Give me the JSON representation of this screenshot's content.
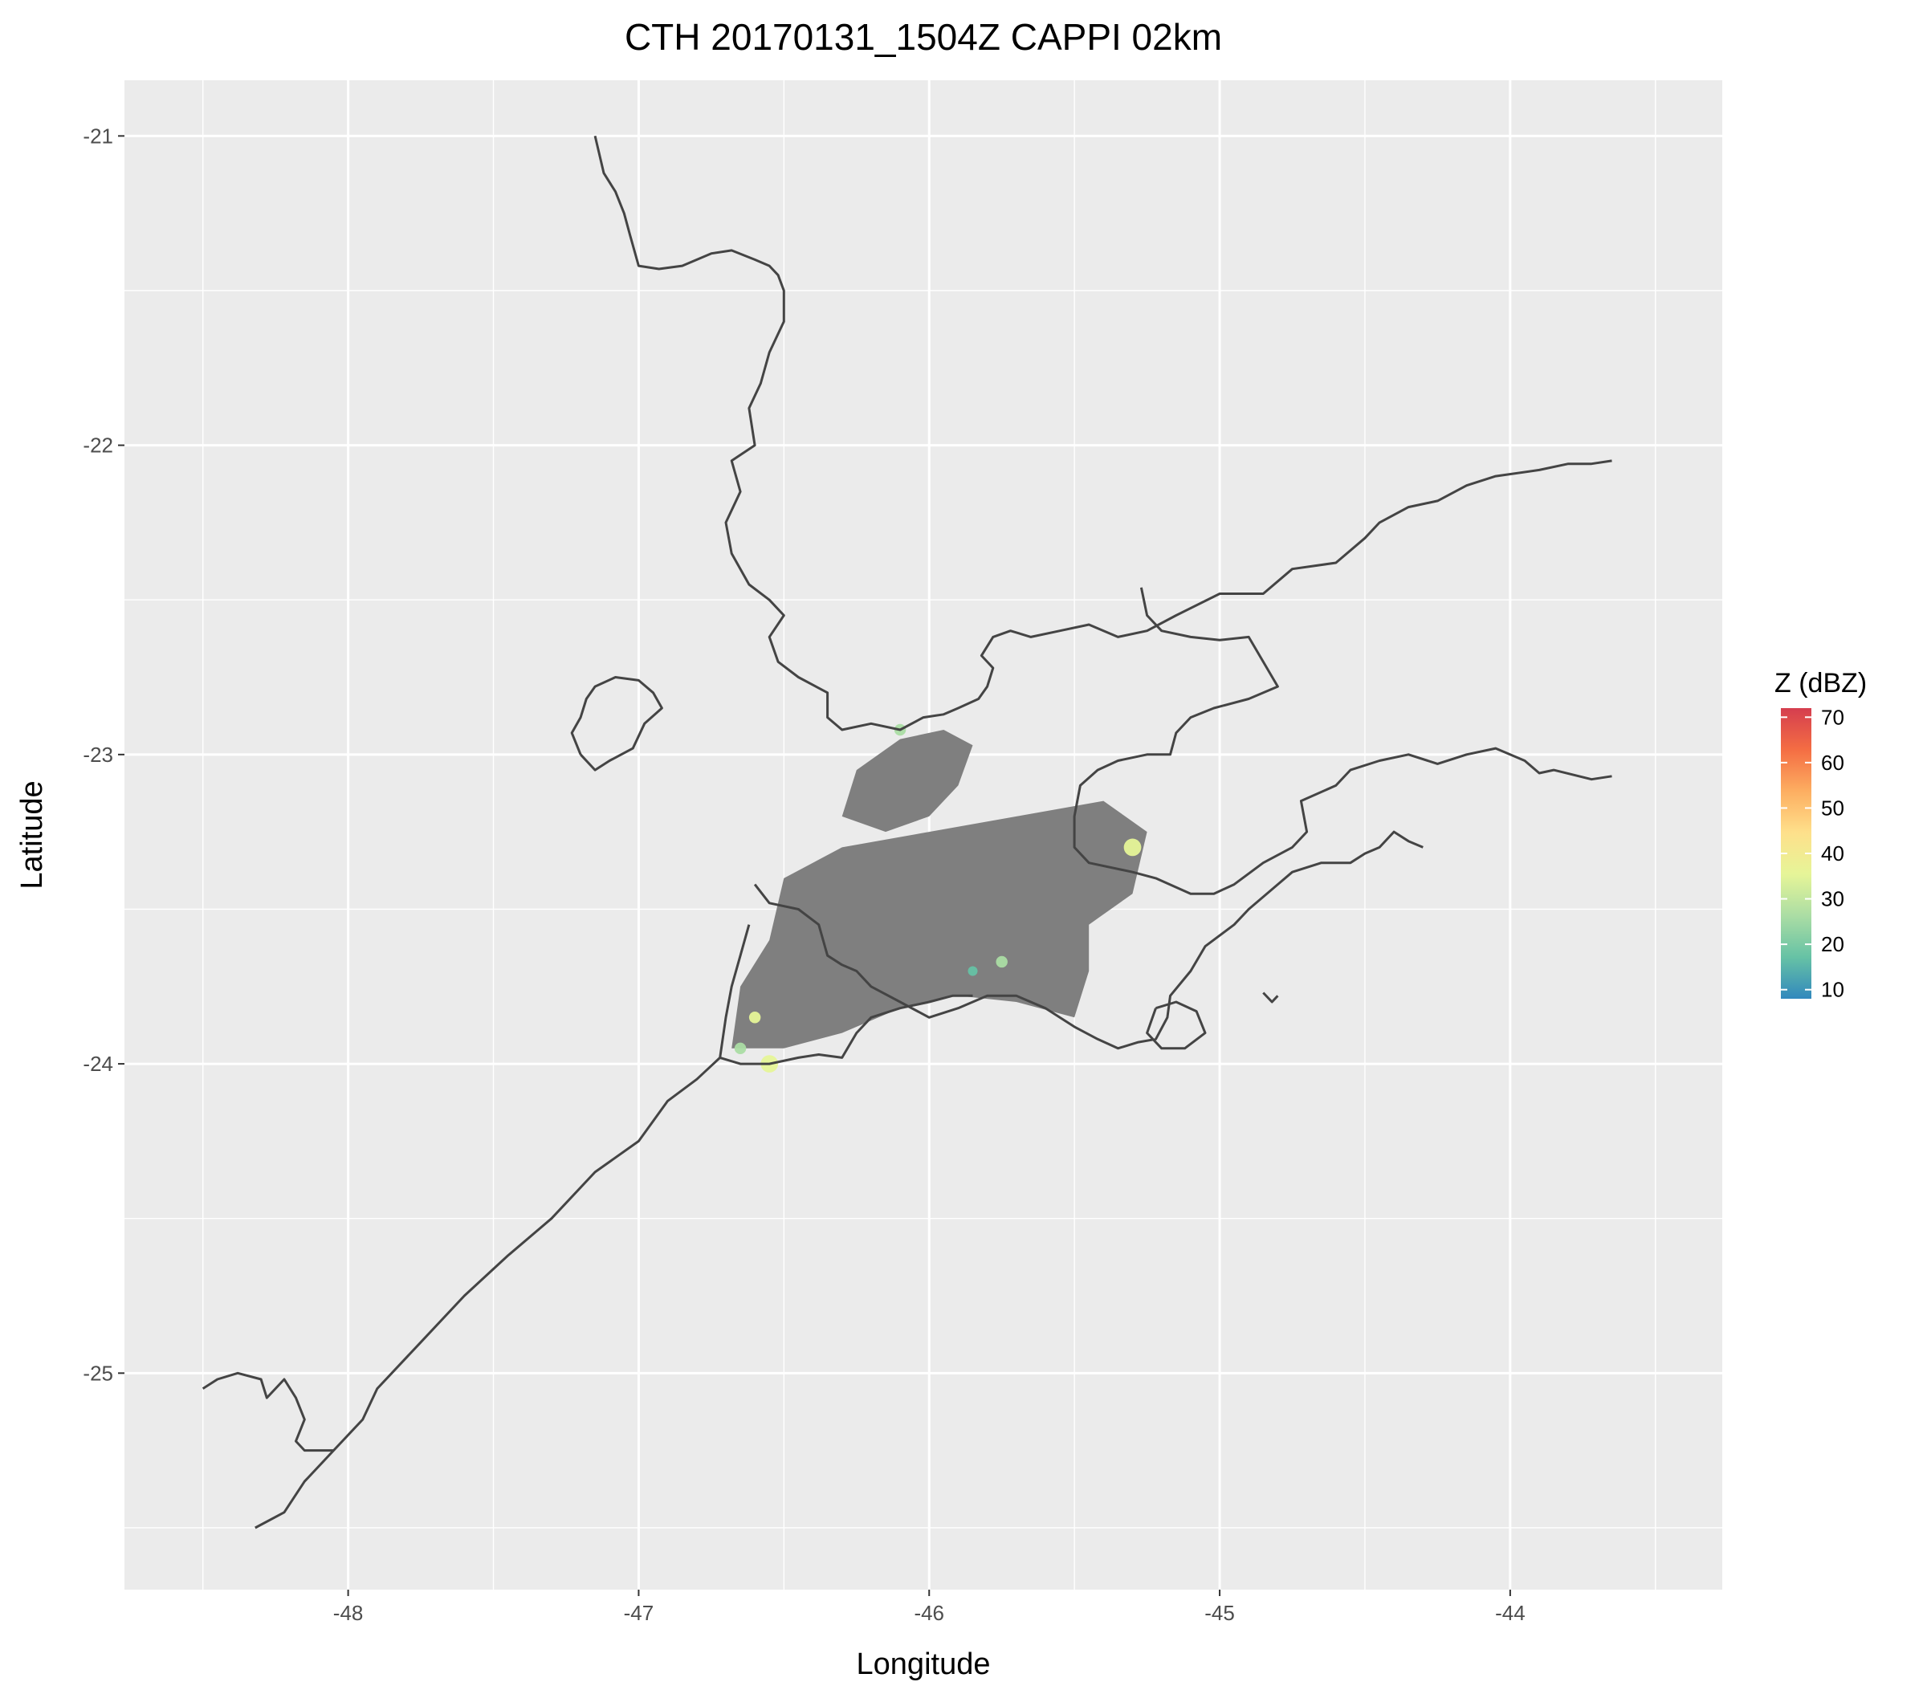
{
  "title": "CTH 20170131_1504Z  CAPPI 02km",
  "xlabel": "Longitude",
  "ylabel": "Latitude",
  "x_ticks": [
    {
      "value": -48,
      "label": "-48"
    },
    {
      "value": -47,
      "label": "-47"
    },
    {
      "value": -46,
      "label": "-46"
    },
    {
      "value": -45,
      "label": "-45"
    },
    {
      "value": -44,
      "label": "-44"
    }
  ],
  "y_ticks": [
    {
      "value": -21,
      "label": "-21"
    },
    {
      "value": -22,
      "label": "-22"
    },
    {
      "value": -23,
      "label": "-23"
    },
    {
      "value": -24,
      "label": "-24"
    },
    {
      "value": -25,
      "label": "-25"
    }
  ],
  "legend": {
    "title": "Z (dBZ)",
    "range": [
      8,
      72
    ],
    "ticks": [
      {
        "value": 70,
        "label": "70"
      },
      {
        "value": 60,
        "label": "60"
      },
      {
        "value": 50,
        "label": "50"
      },
      {
        "value": 40,
        "label": "40"
      },
      {
        "value": 30,
        "label": "30"
      },
      {
        "value": 20,
        "label": "20"
      },
      {
        "value": 10,
        "label": "10"
      }
    ],
    "colors": [
      "#3288bd",
      "#66c2a5",
      "#abdda4",
      "#e6f598",
      "#fee08b",
      "#fdae61",
      "#f46d43",
      "#d53e4f"
    ]
  },
  "colors": {
    "panel": "#ebebeb",
    "grid": "#ffffff",
    "coast": "#444444",
    "echo_gray": "#7f7f7f"
  },
  "chart_data": {
    "type": "map",
    "xlim": [
      -48.77,
      -43.27
    ],
    "ylim": [
      -25.7,
      -20.82
    ],
    "grid": true,
    "legend_position": "right",
    "coastlines": [
      [
        [
          -47.15,
          -21.0
        ],
        [
          -47.12,
          -21.12
        ],
        [
          -47.08,
          -21.18
        ],
        [
          -47.05,
          -21.25
        ],
        [
          -47.03,
          -21.32
        ],
        [
          -47.0,
          -21.42
        ],
        [
          -46.93,
          -21.43
        ],
        [
          -46.85,
          -21.42
        ],
        [
          -46.75,
          -21.38
        ],
        [
          -46.68,
          -21.37
        ],
        [
          -46.6,
          -21.4
        ],
        [
          -46.55,
          -21.42
        ],
        [
          -46.52,
          -21.45
        ],
        [
          -46.5,
          -21.5
        ],
        [
          -46.5,
          -21.6
        ],
        [
          -46.55,
          -21.7
        ],
        [
          -46.58,
          -21.8
        ],
        [
          -46.62,
          -21.88
        ],
        [
          -46.6,
          -22.0
        ],
        [
          -46.68,
          -22.05
        ],
        [
          -46.65,
          -22.15
        ],
        [
          -46.7,
          -22.25
        ],
        [
          -46.68,
          -22.35
        ],
        [
          -46.62,
          -22.45
        ],
        [
          -46.55,
          -22.5
        ],
        [
          -46.5,
          -22.55
        ],
        [
          -46.55,
          -22.62
        ],
        [
          -46.52,
          -22.7
        ],
        [
          -46.45,
          -22.75
        ],
        [
          -46.35,
          -22.8
        ],
        [
          -46.35,
          -22.88
        ],
        [
          -46.3,
          -22.92
        ],
        [
          -46.2,
          -22.9
        ],
        [
          -46.1,
          -22.92
        ],
        [
          -46.02,
          -22.88
        ],
        [
          -45.95,
          -22.87
        ],
        [
          -45.9,
          -22.85
        ],
        [
          -45.83,
          -22.82
        ],
        [
          -45.8,
          -22.78
        ],
        [
          -45.78,
          -22.72
        ],
        [
          -45.82,
          -22.68
        ],
        [
          -45.78,
          -22.62
        ],
        [
          -45.72,
          -22.6
        ],
        [
          -45.65,
          -22.62
        ],
        [
          -45.55,
          -22.6
        ],
        [
          -45.45,
          -22.58
        ],
        [
          -45.35,
          -22.62
        ],
        [
          -45.25,
          -22.6
        ],
        [
          -45.15,
          -22.55
        ],
        [
          -45.0,
          -22.48
        ],
        [
          -44.85,
          -22.48
        ],
        [
          -44.75,
          -22.4
        ],
        [
          -44.6,
          -22.38
        ],
        [
          -44.5,
          -22.3
        ],
        [
          -44.45,
          -22.25
        ],
        [
          -44.35,
          -22.2
        ],
        [
          -44.25,
          -22.18
        ],
        [
          -44.15,
          -22.13
        ],
        [
          -44.05,
          -22.1
        ],
        [
          -43.9,
          -22.08
        ],
        [
          -43.8,
          -22.06
        ],
        [
          -43.72,
          -22.06
        ],
        [
          -43.65,
          -22.05
        ]
      ],
      [
        [
          -45.27,
          -22.46
        ],
        [
          -45.25,
          -22.55
        ],
        [
          -45.2,
          -22.6
        ],
        [
          -45.1,
          -22.62
        ],
        [
          -45.0,
          -22.63
        ],
        [
          -44.9,
          -22.62
        ],
        [
          -44.85,
          -22.7
        ],
        [
          -44.8,
          -22.78
        ],
        [
          -44.9,
          -22.82
        ],
        [
          -45.02,
          -22.85
        ],
        [
          -45.1,
          -22.88
        ],
        [
          -45.15,
          -22.93
        ],
        [
          -45.17,
          -23.0
        ],
        [
          -45.25,
          -23.0
        ],
        [
          -45.35,
          -23.02
        ],
        [
          -45.42,
          -23.05
        ],
        [
          -45.48,
          -23.1
        ],
        [
          -45.5,
          -23.2
        ],
        [
          -45.5,
          -23.3
        ],
        [
          -45.45,
          -23.35
        ],
        [
          -45.3,
          -23.38
        ],
        [
          -45.22,
          -23.4
        ],
        [
          -45.1,
          -23.45
        ],
        [
          -45.02,
          -23.45
        ],
        [
          -44.95,
          -23.42
        ],
        [
          -44.85,
          -23.35
        ],
        [
          -44.75,
          -23.3
        ],
        [
          -44.7,
          -23.25
        ],
        [
          -44.72,
          -23.15
        ],
        [
          -44.6,
          -23.1
        ],
        [
          -44.55,
          -23.05
        ],
        [
          -44.45,
          -23.02
        ],
        [
          -44.35,
          -23.0
        ],
        [
          -44.25,
          -23.03
        ],
        [
          -44.15,
          -23.0
        ],
        [
          -44.05,
          -22.98
        ],
        [
          -43.95,
          -23.02
        ],
        [
          -43.9,
          -23.06
        ],
        [
          -43.85,
          -23.05
        ],
        [
          -43.72,
          -23.08
        ],
        [
          -43.65,
          -23.07
        ]
      ],
      [
        [
          -47.2,
          -23.0
        ],
        [
          -47.15,
          -23.05
        ],
        [
          -47.1,
          -23.02
        ],
        [
          -47.02,
          -22.98
        ],
        [
          -46.98,
          -22.9
        ],
        [
          -46.92,
          -22.85
        ],
        [
          -46.95,
          -22.8
        ],
        [
          -47.0,
          -22.76
        ],
        [
          -47.08,
          -22.75
        ],
        [
          -47.15,
          -22.78
        ],
        [
          -47.18,
          -22.82
        ],
        [
          -47.2,
          -22.88
        ],
        [
          -47.23,
          -22.93
        ],
        [
          -47.2,
          -23.0
        ]
      ],
      [
        [
          -46.6,
          -23.42
        ],
        [
          -46.55,
          -23.48
        ],
        [
          -46.45,
          -23.5
        ],
        [
          -46.38,
          -23.55
        ],
        [
          -46.35,
          -23.65
        ],
        [
          -46.3,
          -23.68
        ],
        [
          -46.25,
          -23.7
        ],
        [
          -46.2,
          -23.75
        ],
        [
          -46.1,
          -23.8
        ],
        [
          -46.0,
          -23.85
        ],
        [
          -45.9,
          -23.82
        ],
        [
          -45.8,
          -23.78
        ],
        [
          -45.7,
          -23.78
        ],
        [
          -45.6,
          -23.82
        ],
        [
          -45.5,
          -23.88
        ],
        [
          -45.42,
          -23.92
        ],
        [
          -45.35,
          -23.95
        ],
        [
          -45.28,
          -23.93
        ],
        [
          -45.22,
          -23.92
        ],
        [
          -45.18,
          -23.85
        ],
        [
          -45.17,
          -23.78
        ],
        [
          -45.1,
          -23.7
        ],
        [
          -45.05,
          -23.62
        ],
        [
          -44.95,
          -23.55
        ],
        [
          -44.9,
          -23.5
        ],
        [
          -44.8,
          -23.42
        ],
        [
          -44.75,
          -23.38
        ],
        [
          -44.65,
          -23.35
        ],
        [
          -44.55,
          -23.35
        ],
        [
          -44.5,
          -23.32
        ],
        [
          -44.45,
          -23.3
        ],
        [
          -44.4,
          -23.25
        ],
        [
          -44.35,
          -23.28
        ],
        [
          -44.3,
          -23.3
        ]
      ],
      [
        [
          -46.62,
          -23.55
        ],
        [
          -46.65,
          -23.65
        ],
        [
          -46.68,
          -23.75
        ],
        [
          -46.7,
          -23.85
        ],
        [
          -46.72,
          -23.98
        ],
        [
          -46.65,
          -24.0
        ],
        [
          -46.55,
          -24.0
        ],
        [
          -46.45,
          -23.98
        ],
        [
          -46.38,
          -23.97
        ],
        [
          -46.3,
          -23.98
        ],
        [
          -46.25,
          -23.9
        ],
        [
          -46.2,
          -23.85
        ],
        [
          -46.1,
          -23.82
        ],
        [
          -46.0,
          -23.8
        ],
        [
          -45.92,
          -23.78
        ],
        [
          -45.85,
          -23.78
        ]
      ],
      [
        [
          -46.72,
          -23.98
        ],
        [
          -46.8,
          -24.05
        ],
        [
          -46.9,
          -24.12
        ],
        [
          -47.0,
          -24.25
        ],
        [
          -47.15,
          -24.35
        ],
        [
          -47.3,
          -24.5
        ],
        [
          -47.45,
          -24.62
        ],
        [
          -47.6,
          -24.75
        ],
        [
          -47.75,
          -24.9
        ],
        [
          -47.9,
          -25.05
        ],
        [
          -47.95,
          -25.15
        ],
        [
          -48.05,
          -25.25
        ],
        [
          -48.15,
          -25.35
        ],
        [
          -48.22,
          -25.45
        ],
        [
          -48.32,
          -25.5
        ]
      ],
      [
        [
          -48.5,
          -25.05
        ],
        [
          -48.45,
          -25.02
        ],
        [
          -48.38,
          -25.0
        ],
        [
          -48.3,
          -25.02
        ],
        [
          -48.28,
          -25.08
        ],
        [
          -48.22,
          -25.02
        ],
        [
          -48.18,
          -25.08
        ],
        [
          -48.15,
          -25.15
        ],
        [
          -48.18,
          -25.22
        ],
        [
          -48.15,
          -25.25
        ],
        [
          -48.05,
          -25.25
        ]
      ],
      [
        [
          -44.85,
          -23.77
        ],
        [
          -44.82,
          -23.8
        ],
        [
          -44.8,
          -23.78
        ]
      ],
      [
        [
          -45.22,
          -23.82
        ],
        [
          -45.15,
          -23.8
        ],
        [
          -45.08,
          -23.83
        ],
        [
          -45.05,
          -23.9
        ],
        [
          -45.12,
          -23.95
        ],
        [
          -45.2,
          -23.95
        ],
        [
          -45.25,
          -23.9
        ],
        [
          -45.22,
          -23.82
        ]
      ]
    ],
    "echoes": [
      {
        "kind": "region",
        "z": "gray",
        "points": [
          [
            -46.5,
            -23.4
          ],
          [
            -46.3,
            -23.3
          ],
          [
            -46.0,
            -23.25
          ],
          [
            -45.7,
            -23.2
          ],
          [
            -45.4,
            -23.15
          ],
          [
            -45.25,
            -23.25
          ],
          [
            -45.3,
            -23.45
          ],
          [
            -45.45,
            -23.55
          ],
          [
            -45.45,
            -23.7
          ],
          [
            -45.5,
            -23.85
          ],
          [
            -45.7,
            -23.8
          ],
          [
            -45.9,
            -23.78
          ],
          [
            -46.1,
            -23.82
          ],
          [
            -46.3,
            -23.9
          ],
          [
            -46.5,
            -23.95
          ],
          [
            -46.68,
            -23.95
          ],
          [
            -46.65,
            -23.75
          ],
          [
            -46.55,
            -23.6
          ],
          [
            -46.5,
            -23.4
          ]
        ]
      },
      {
        "kind": "region",
        "z": "gray",
        "points": [
          [
            -46.25,
            -23.05
          ],
          [
            -46.1,
            -22.95
          ],
          [
            -45.95,
            -22.92
          ],
          [
            -45.85,
            -22.97
          ],
          [
            -45.9,
            -23.1
          ],
          [
            -46.0,
            -23.2
          ],
          [
            -46.15,
            -23.25
          ],
          [
            -46.3,
            -23.2
          ],
          [
            -46.25,
            -23.05
          ]
        ]
      },
      {
        "kind": "cell",
        "z": 38,
        "lon": -45.3,
        "lat": -23.3,
        "r": 0.03
      },
      {
        "kind": "cell",
        "z": 35,
        "lon": -46.55,
        "lat": -24.0,
        "r": 0.03
      },
      {
        "kind": "cell",
        "z": 32,
        "lon": -46.6,
        "lat": -23.85,
        "r": 0.02
      },
      {
        "kind": "cell",
        "z": 28,
        "lon": -45.75,
        "lat": -23.67,
        "r": 0.02
      },
      {
        "kind": "cell",
        "z": 25,
        "lon": -46.65,
        "lat": -23.95,
        "r": 0.02
      },
      {
        "kind": "cell",
        "z": 22,
        "lon": -46.1,
        "lat": -22.92,
        "r": 0.02
      },
      {
        "kind": "cell",
        "z": 15,
        "lon": -45.85,
        "lat": -23.7,
        "r": 0.015
      }
    ]
  }
}
